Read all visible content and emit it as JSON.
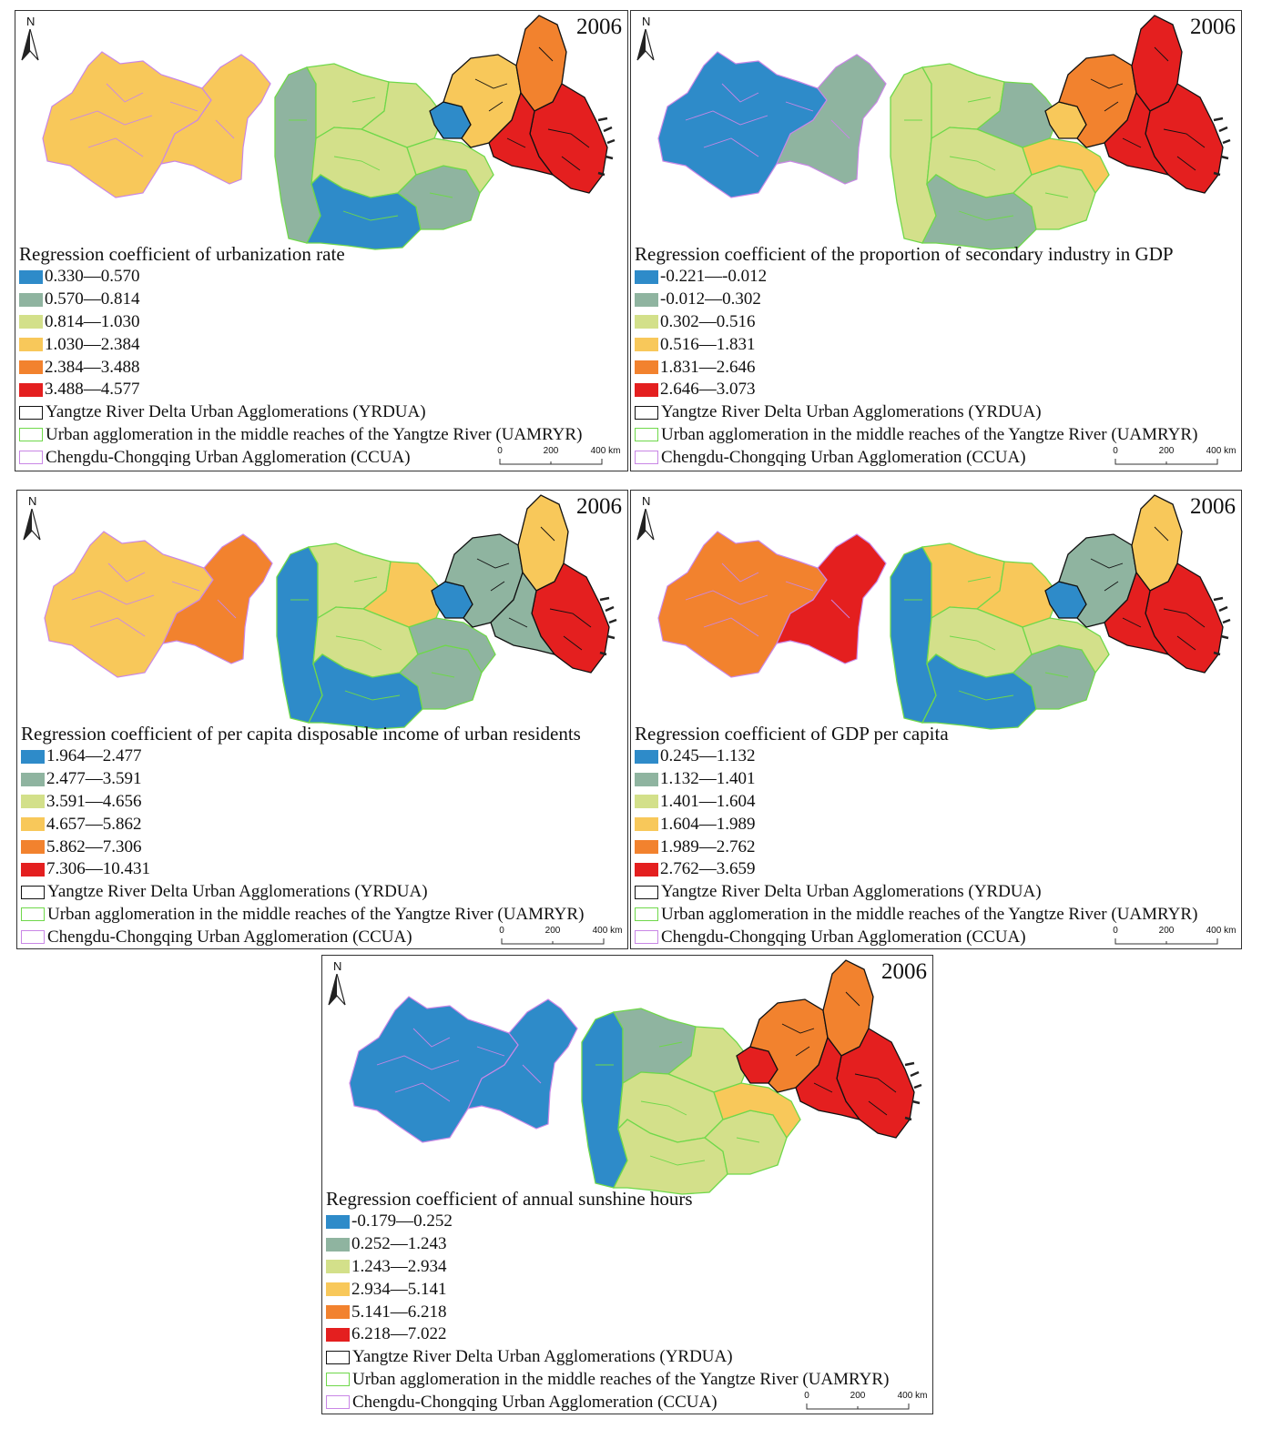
{
  "year": "2006",
  "north": "N",
  "colors": {
    "c1": "#2e8bc9",
    "c2": "#8fb4a0",
    "c3": "#d3e08a",
    "c4": "#f8c85a",
    "c5": "#f2822e",
    "c6": "#e41f1f",
    "yrdua_border": "#111111",
    "uamryr_border": "#6fd84a",
    "ccua_border": "#c987e6"
  },
  "boundary_legend": {
    "yrdua": "Yangtze River Delta Urban Agglomerations (YRDUA)",
    "uamryr": "Urban agglomeration in the middle reaches of the Yangtze River (UAMRYR)",
    "ccua": "Chengdu-Chongqing Urban Agglomeration (CCUA)"
  },
  "scale_bar": {
    "t0": "0",
    "t1": "200",
    "t2": "400 km"
  },
  "panels": [
    {
      "title": "Regression coefficient of urbanization rate",
      "classes": [
        "0.330—0.570",
        "0.570—0.814",
        "0.814—1.030",
        "1.030—2.384",
        "2.384—3.488",
        "3.488—4.577"
      ]
    },
    {
      "title": "Regression coefficient of the proportion of secondary industry in GDP",
      "classes": [
        "-0.221—-0.012",
        "-0.012—0.302",
        "0.302—0.516",
        "0.516—1.831",
        "1.831—2.646",
        "2.646—3.073"
      ]
    },
    {
      "title": "Regression coefficient of per capita disposable income of urban residents",
      "classes": [
        "1.964—2.477",
        "2.477—3.591",
        "3.591—4.656",
        "4.657—5.862",
        "5.862—7.306",
        "7.306—10.431"
      ]
    },
    {
      "title": "Regression coefficient of GDP per capita",
      "classes": [
        "0.245—1.132",
        "1.132—1.401",
        "1.401—1.604",
        "1.604—1.989",
        "1.989—2.762",
        "2.762—3.659"
      ]
    },
    {
      "title": "Regression coefficient of annual sunshine hours",
      "classes": [
        "-0.179—0.252",
        "0.252—1.243",
        "1.243—2.934",
        "2.934—5.141",
        "5.141—6.218",
        "6.218—7.022"
      ]
    }
  ]
}
